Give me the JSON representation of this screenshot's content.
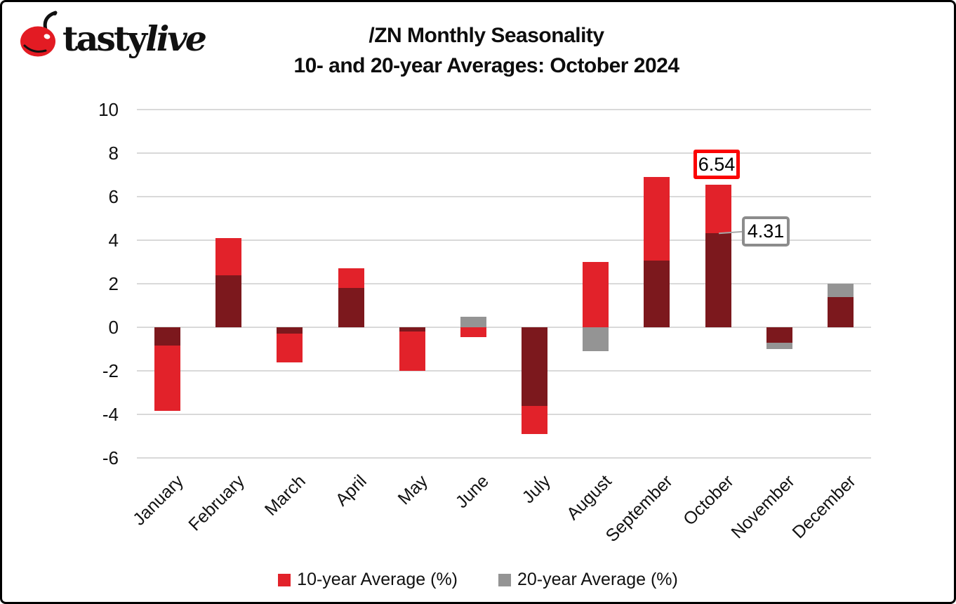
{
  "logo": {
    "brand_tasty": "tasty",
    "brand_live": "live",
    "cherry_color": "#e31b23"
  },
  "title": {
    "line1": "/ZN Monthly Seasonality",
    "line2": "10- and 20-year Averages: October 2024"
  },
  "chart_data": {
    "type": "bar",
    "categories": [
      "January",
      "February",
      "March",
      "April",
      "May",
      "June",
      "July",
      "August",
      "September",
      "October",
      "November",
      "December"
    ],
    "series": [
      {
        "name": "10-year Average (%)",
        "color": "#e2222a",
        "values": [
          -3.85,
          4.1,
          -1.6,
          2.7,
          -2.0,
          -0.45,
          -4.9,
          3.0,
          6.9,
          6.54,
          -0.7,
          1.4
        ]
      },
      {
        "name": "20-year Average (%)",
        "color": "#949494",
        "values": [
          -0.85,
          2.4,
          -0.3,
          1.8,
          -0.2,
          0.5,
          -3.6,
          -1.1,
          3.05,
          4.31,
          -1.0,
          2.0
        ]
      }
    ],
    "overlap_color": "#7c181d",
    "ylim": [
      -6,
      10
    ],
    "yticks": [
      10,
      8,
      6,
      4,
      2,
      0,
      -2,
      -4,
      -6
    ],
    "grid": true,
    "legend_position": "bottom",
    "annotations": [
      {
        "text": "6.54",
        "month": "October",
        "series": "10-year Average (%)",
        "border_color": "#fb0404"
      },
      {
        "text": "4.31",
        "month": "October",
        "series": "20-year Average (%)",
        "border_color": "#8c8c8c"
      }
    ]
  },
  "legend": [
    {
      "label": "10-year Average (%)",
      "swatch_color": "#e2222a"
    },
    {
      "label": "20-year Average (%)",
      "swatch_color": "#949494"
    }
  ]
}
